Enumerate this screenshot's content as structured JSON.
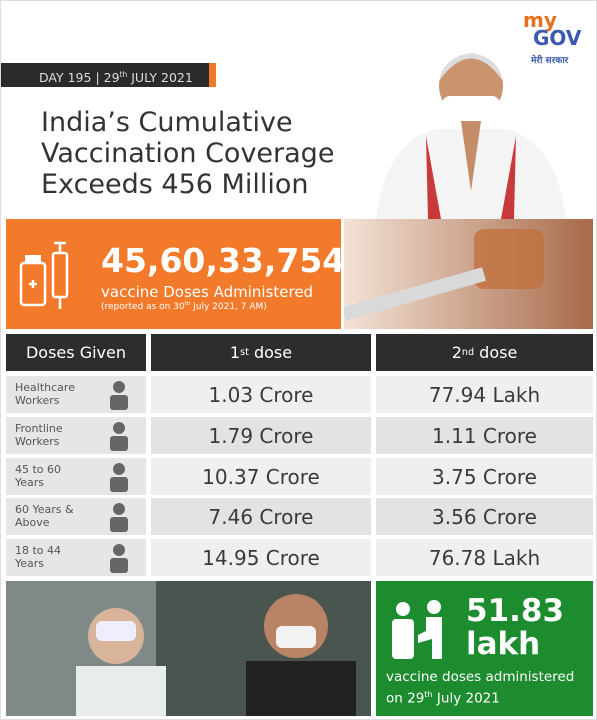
{
  "logo": {
    "brand_my": "my",
    "brand_gov": "GOV",
    "tagline": "मेरी सरकार"
  },
  "header": {
    "day": "DAY 195",
    "separator": "|",
    "date_day": "29",
    "date_suffix": "th",
    "date_rest": "JULY 2021",
    "title_lines": [
      "India’s Cumulative",
      "Vaccination Coverage",
      "Exceeds 456 Million"
    ]
  },
  "total": {
    "value": "45,60,33,754",
    "label": "vaccine Doses Administered",
    "note_prefix": "(reported as on 30",
    "note_suffix": "th",
    "note_rest": "July 2021, 7 AM)"
  },
  "table": {
    "header": {
      "first_col": "Doses Given",
      "dose1": {
        "num": "1",
        "sup": "st",
        "word": "dose"
      },
      "dose2": {
        "num": "2",
        "sup": "nd",
        "word": "dose"
      }
    },
    "rows": [
      {
        "label": [
          "Healthcare",
          "Workers"
        ],
        "first": "1.03 Crore",
        "second": "77.94 Lakh"
      },
      {
        "label": [
          "Frontline",
          "Workers"
        ],
        "first": "1.79 Crore",
        "second": "1.11 Crore"
      },
      {
        "label": [
          "45 to 60",
          "Years"
        ],
        "first": "10.37 Crore",
        "second": "3.75 Crore"
      },
      {
        "label": [
          "60 Years &",
          "Above"
        ],
        "first": "7.46 Crore",
        "second": "3.56 Crore"
      },
      {
        "label": [
          "18 to 44",
          "Years"
        ],
        "first": "14.95 Crore",
        "second": "76.78 Lakh"
      }
    ]
  },
  "daily": {
    "value_lines": [
      "51.83",
      "lakh"
    ],
    "label": "vaccine doses administered",
    "date_prefix": "on 29",
    "date_suffix": "th",
    "date_rest": "July 2021"
  }
}
